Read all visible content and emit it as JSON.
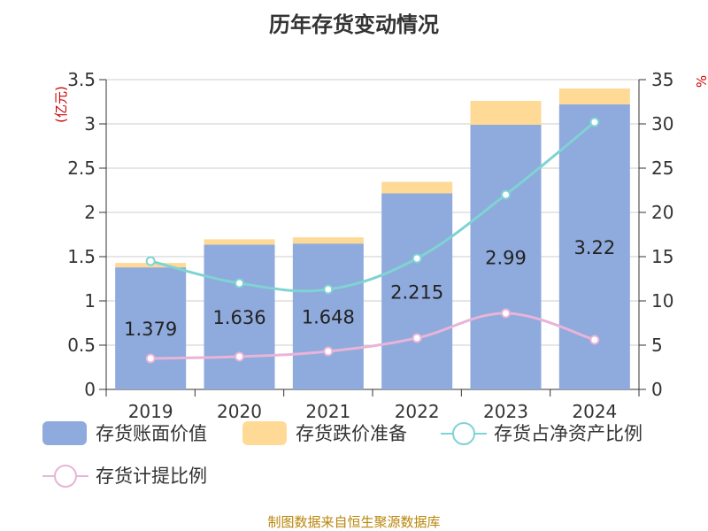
{
  "title": "历年存货变动情况",
  "source": "制图数据来自恒生聚源数据库",
  "chart_data": {
    "type": "bar",
    "categories": [
      "2019",
      "2020",
      "2021",
      "2022",
      "2023",
      "2024"
    ],
    "y_left": {
      "label": "(亿元)",
      "min": 0,
      "max": 3.5,
      "ticks": [
        "0",
        "0.5",
        "1",
        "1.5",
        "2",
        "2.5",
        "3",
        "3.5"
      ]
    },
    "y_right": {
      "label": "%",
      "min": 0,
      "max": 35,
      "ticks": [
        "0",
        "5",
        "10",
        "15",
        "20",
        "25",
        "30",
        "35"
      ]
    },
    "grid": true,
    "legend_position": "bottom",
    "series": [
      {
        "name": "存货账面价值",
        "kind": "bar",
        "stack": "a",
        "axis": "left",
        "color": "#8faadc",
        "values": [
          1.379,
          1.636,
          1.648,
          2.215,
          2.99,
          3.22
        ],
        "labels": [
          "1.379",
          "1.636",
          "1.648",
          "2.215",
          "2.99",
          "3.22"
        ]
      },
      {
        "name": "存货跌价准备",
        "kind": "bar",
        "stack": "a",
        "axis": "left",
        "color": "#ffd996",
        "values": [
          0.05,
          0.06,
          0.07,
          0.13,
          0.27,
          0.18
        ]
      },
      {
        "name": "存货占净资产比例",
        "kind": "line",
        "axis": "right",
        "color": "#7fd3d3",
        "values": [
          14.5,
          12.0,
          11.3,
          14.8,
          22.0,
          30.2
        ]
      },
      {
        "name": "存货计提比例",
        "kind": "line",
        "axis": "right",
        "color": "#e8b4d8",
        "values": [
          3.5,
          3.7,
          4.3,
          5.8,
          8.6,
          5.6
        ]
      }
    ]
  }
}
